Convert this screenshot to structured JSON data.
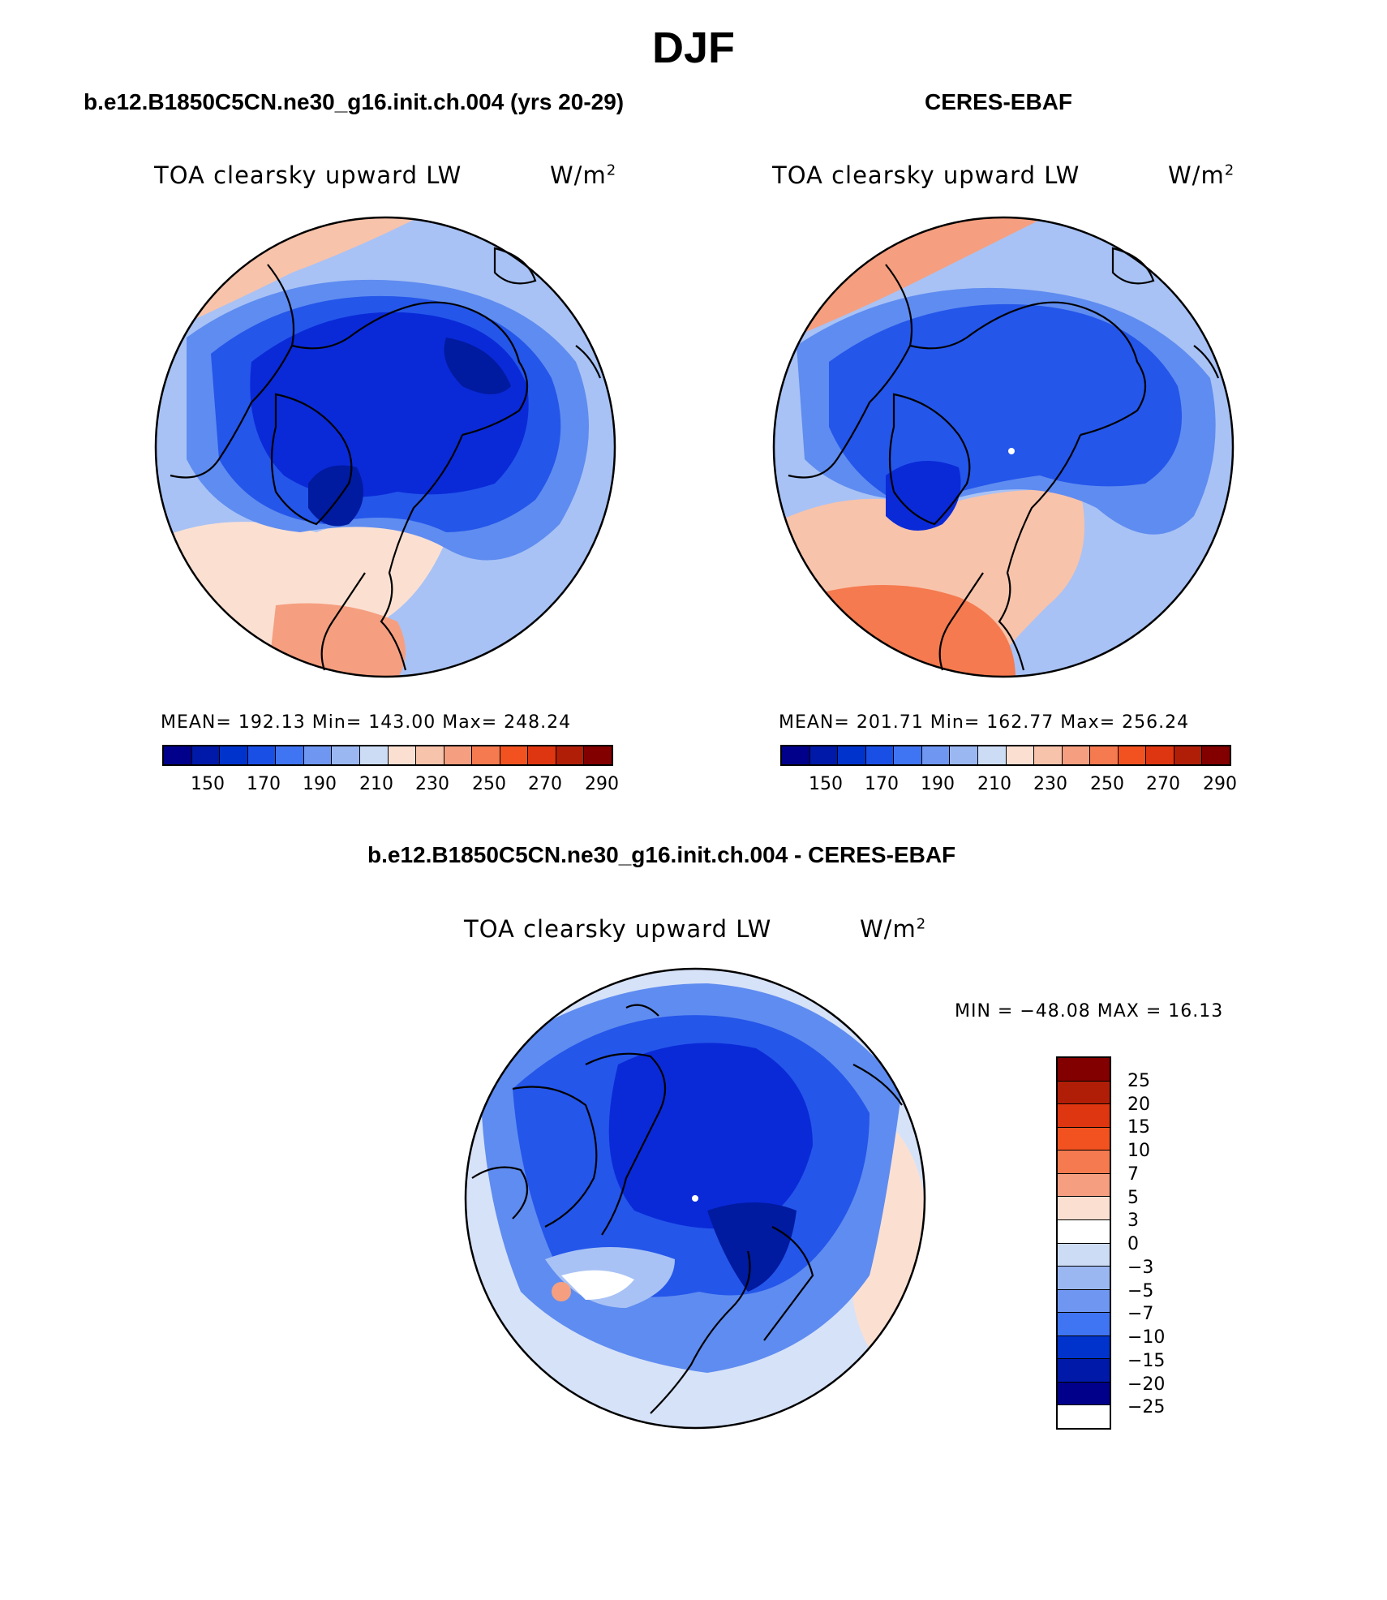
{
  "figure": {
    "title": "DJF"
  },
  "panels": [
    {
      "case": "b.e12.B1850C5CN.ne30_g16.init.ch.004 (yrs 20-29)",
      "label": "TOA clearsky upward LW",
      "units": "W/m",
      "units_sup": "2",
      "stats": "MEAN= 192.13   Min= 143.00   Max= 248.24",
      "mean": 192.13,
      "min": 143.0,
      "max": 248.24
    },
    {
      "case": "CERES-EBAF",
      "label": "TOA clearsky upward LW",
      "units": "W/m",
      "units_sup": "2",
      "stats": "MEAN= 201.71   Min= 162.77   Max= 256.24",
      "mean": 201.71,
      "min": 162.77,
      "max": 256.24
    },
    {
      "case": "b.e12.B1850C5CN.ne30_g16.init.ch.004 - CERES-EBAF",
      "label": "TOA clearsky upward LW",
      "units": "W/m",
      "units_sup": "2",
      "stats": "MIN = −48.08 MAX =   16.13",
      "min": -48.08,
      "max": 16.13
    }
  ],
  "abs_colorbar": {
    "colors": [
      "#00008a",
      "#0019a8",
      "#0033cc",
      "#1a4fe6",
      "#3f74f2",
      "#6f97f2",
      "#9bb7f2",
      "#cddcf5",
      "#fbe0d2",
      "#f8c3ab",
      "#f59f80",
      "#f57a4f",
      "#f2521f",
      "#de3610",
      "#b01e08",
      "#820000"
    ],
    "tick_labels": [
      "150",
      "170",
      "190",
      "210",
      "230",
      "250",
      "270",
      "290"
    ]
  },
  "diff_colorbar": {
    "colors": [
      "#820000",
      "#b01e08",
      "#de3610",
      "#f2521f",
      "#f57a4f",
      "#f59f80",
      "#fbe0d2",
      "#ffffff",
      "#cddcf5",
      "#9bb7f2",
      "#6f97f2",
      "#3f74f2",
      "#0033cc",
      "#0019a8",
      "#00008a"
    ],
    "tick_labels": [
      "25",
      "20",
      "15",
      "10",
      "7",
      "5",
      "3",
      "0",
      "−3",
      "−5",
      "−7",
      "−10",
      "−15",
      "−20",
      "−25"
    ]
  },
  "map_colors": {
    "deep": "#0a2ad8",
    "darkest": "#001aa0",
    "mid": "#2456ea",
    "light": "#5f8cf0",
    "pale": "#a8c2f5",
    "palest": "#d6e2f8",
    "warm1": "#fbe0d2",
    "warm2": "#f8c3ab",
    "warm3": "#f59f80",
    "warm4": "#f57a4f",
    "white": "#ffffff"
  }
}
